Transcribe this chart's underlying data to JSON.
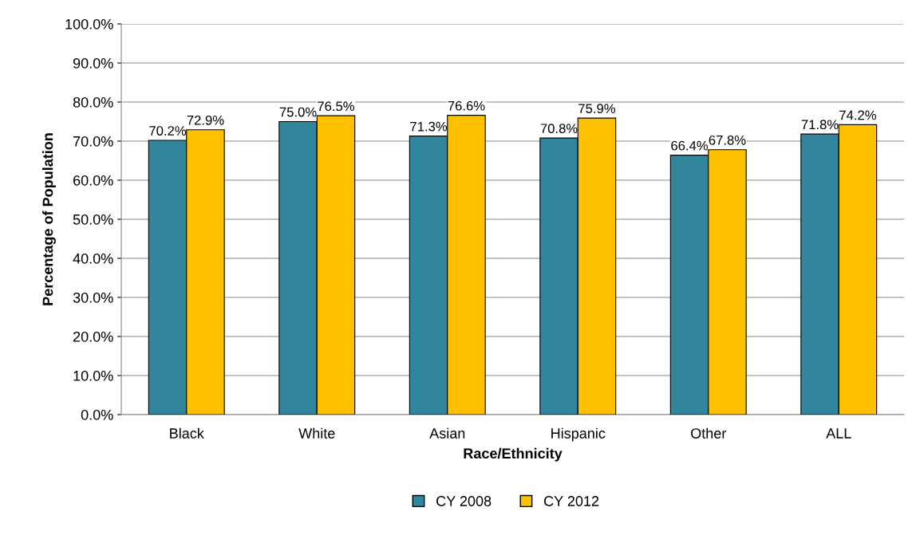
{
  "chart_data": {
    "type": "bar",
    "xlabel": "Race/Ethnicity",
    "ylabel": "Percentage of Population",
    "categories": [
      "Black",
      "White",
      "Asian",
      "Hispanic",
      "Other",
      "ALL"
    ],
    "series": [
      {
        "name": "CY 2008",
        "color": "#31859c",
        "values": [
          70.2,
          75.0,
          71.3,
          70.8,
          66.4,
          71.8
        ],
        "value_labels": [
          "70.2%",
          "75.0%",
          "71.3%",
          "70.8%",
          "66.4%",
          "71.8%"
        ]
      },
      {
        "name": "CY 2012",
        "color": "#ffc000",
        "values": [
          72.9,
          76.5,
          76.6,
          75.9,
          67.8,
          74.2
        ],
        "value_labels": [
          "72.9%",
          "76.5%",
          "76.6%",
          "75.9%",
          "67.8%",
          "74.2%"
        ]
      }
    ],
    "ylim": [
      0,
      100
    ],
    "yticks": [
      {
        "value": 0,
        "label": "0.0%"
      },
      {
        "value": 10,
        "label": "10.0%"
      },
      {
        "value": 20,
        "label": "20.0%"
      },
      {
        "value": 30,
        "label": "30.0%"
      },
      {
        "value": 40,
        "label": "40.0%"
      },
      {
        "value": 50,
        "label": "50.0%"
      },
      {
        "value": 60,
        "label": "60.0%"
      },
      {
        "value": 70,
        "label": "70.0%"
      },
      {
        "value": 80,
        "label": "80.0%"
      },
      {
        "value": 90,
        "label": "90.0%"
      },
      {
        "value": 100,
        "label": "100.0%"
      }
    ],
    "grid": "y",
    "legend": "bottom"
  }
}
